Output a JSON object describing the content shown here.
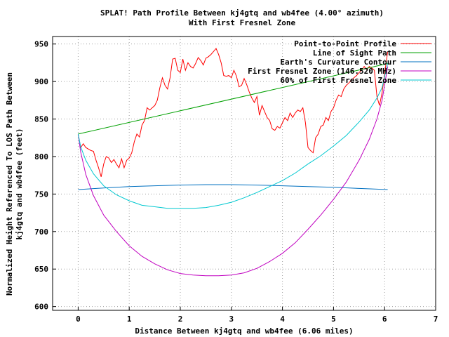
{
  "chart_data": {
    "type": "line",
    "title": "SPLAT! Path Profile Between kj4gtq and wb4fee (4.00° azimuth)",
    "subtitle": "With First Fresnel Zone",
    "xlabel": "Distance Between kj4gtq and wb4fee (6.06 miles)",
    "ylabel": "Normalized Height Referenced To LOS Path Between",
    "ylabel2": "kj4gtq and wb4fee (feet)",
    "xlim": [
      -0.5,
      7
    ],
    "ylim": [
      595,
      960
    ],
    "xticks": [
      0,
      1,
      2,
      3,
      4,
      5,
      6,
      7
    ],
    "yticks": [
      600,
      650,
      700,
      750,
      800,
      850,
      900,
      950
    ],
    "grid": true,
    "legend_position": "top-right",
    "series": [
      {
        "name": "Point-to-Point Profile",
        "color": "#ff0000",
        "x": [
          0.0,
          0.05,
          0.1,
          0.15,
          0.2,
          0.25,
          0.3,
          0.35,
          0.4,
          0.45,
          0.5,
          0.55,
          0.6,
          0.65,
          0.7,
          0.75,
          0.8,
          0.85,
          0.9,
          0.95,
          1.0,
          1.05,
          1.1,
          1.15,
          1.2,
          1.25,
          1.3,
          1.35,
          1.4,
          1.45,
          1.5,
          1.55,
          1.6,
          1.65,
          1.7,
          1.75,
          1.8,
          1.85,
          1.9,
          1.95,
          2.0,
          2.05,
          2.1,
          2.15,
          2.2,
          2.25,
          2.3,
          2.35,
          2.4,
          2.45,
          2.5,
          2.55,
          2.6,
          2.65,
          2.7,
          2.75,
          2.8,
          2.85,
          2.9,
          2.95,
          3.0,
          3.05,
          3.1,
          3.15,
          3.2,
          3.25,
          3.3,
          3.35,
          3.4,
          3.45,
          3.5,
          3.55,
          3.6,
          3.65,
          3.7,
          3.75,
          3.8,
          3.85,
          3.9,
          3.95,
          4.0,
          4.05,
          4.1,
          4.15,
          4.2,
          4.25,
          4.3,
          4.35,
          4.4,
          4.45,
          4.5,
          4.55,
          4.6,
          4.65,
          4.7,
          4.75,
          4.8,
          4.85,
          4.9,
          4.95,
          5.0,
          5.05,
          5.1,
          5.15,
          5.2,
          5.25,
          5.3,
          5.35,
          5.4,
          5.45,
          5.5,
          5.55,
          5.6,
          5.65,
          5.7,
          5.75,
          5.8,
          5.85,
          5.9,
          5.95,
          6.0,
          6.06
        ],
        "y": [
          830,
          812,
          817,
          812,
          810,
          808,
          807,
          795,
          785,
          773,
          790,
          800,
          798,
          792,
          796,
          790,
          785,
          797,
          785,
          795,
          798,
          805,
          820,
          830,
          826,
          842,
          848,
          865,
          862,
          865,
          868,
          875,
          892,
          905,
          895,
          890,
          905,
          930,
          931,
          915,
          912,
          930,
          915,
          925,
          920,
          918,
          924,
          932,
          928,
          922,
          931,
          933,
          936,
          940,
          944,
          936,
          925,
          908,
          907,
          908,
          905,
          915,
          907,
          893,
          895,
          904,
          896,
          886,
          878,
          872,
          880,
          855,
          868,
          860,
          852,
          848,
          837,
          835,
          840,
          838,
          845,
          852,
          848,
          858,
          852,
          858,
          862,
          860,
          865,
          845,
          812,
          808,
          805,
          825,
          830,
          840,
          842,
          852,
          848,
          860,
          865,
          875,
          882,
          880,
          890,
          895,
          898,
          902,
          905,
          908,
          912,
          915,
          920,
          916,
          920,
          918,
          915,
          880,
          868,
          885,
          910,
          940
        ]
      },
      {
        "name": "Line of Sight Path",
        "color": "#00a000",
        "x": [
          0,
          6.06
        ],
        "y": [
          830,
          924
        ]
      },
      {
        "name": "Earth's Curvature Contour",
        "color": "#0070c0",
        "x": [
          0,
          0.5,
          1.0,
          1.5,
          2.0,
          2.5,
          3.0,
          3.5,
          4.0,
          4.5,
          5.0,
          5.5,
          6.06
        ],
        "y": [
          756,
          758,
          760,
          761,
          762,
          762.5,
          762.5,
          762,
          761,
          760,
          759,
          757.5,
          756
        ]
      },
      {
        "name": "First Fresnel Zone (146.520 MHz)",
        "color": "#c000c0",
        "x": [
          0,
          0.05,
          0.15,
          0.3,
          0.5,
          0.75,
          1.0,
          1.25,
          1.5,
          1.75,
          2.0,
          2.25,
          2.5,
          2.75,
          3.0,
          3.25,
          3.5,
          3.75,
          4.0,
          4.25,
          4.5,
          4.75,
          5.0,
          5.25,
          5.5,
          5.7,
          5.85,
          5.95,
          6.06
        ],
        "y": [
          830,
          806,
          776,
          748,
          722,
          700,
          681,
          667,
          657,
          649,
          644,
          642,
          641,
          641,
          642,
          645,
          651,
          660,
          671,
          685,
          703,
          722,
          743,
          766,
          795,
          823,
          850,
          875,
          920
        ]
      },
      {
        "name": "60% of First Fresnel Zone",
        "color": "#00c8d0",
        "x": [
          0,
          0.05,
          0.15,
          0.3,
          0.5,
          0.75,
          1.0,
          1.25,
          1.5,
          1.75,
          2.0,
          2.25,
          2.5,
          2.75,
          3.0,
          3.25,
          3.5,
          3.75,
          4.0,
          4.25,
          4.5,
          4.75,
          5.0,
          5.25,
          5.5,
          5.7,
          5.85,
          5.95,
          6.06
        ],
        "y": [
          830,
          813,
          795,
          777,
          761,
          749,
          741,
          735,
          733,
          731,
          731,
          731,
          732,
          735,
          739,
          745,
          752,
          760,
          768,
          778,
          790,
          801,
          814,
          828,
          846,
          862,
          878,
          892,
          924
        ]
      }
    ]
  }
}
